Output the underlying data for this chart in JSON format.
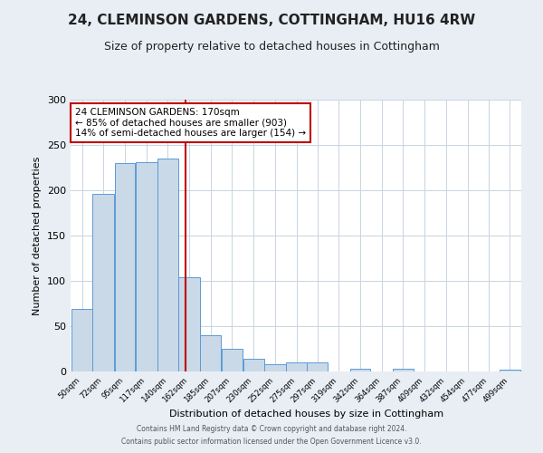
{
  "title": "24, CLEMINSON GARDENS, COTTINGHAM, HU16 4RW",
  "subtitle": "Size of property relative to detached houses in Cottingham",
  "xlabel": "Distribution of detached houses by size in Cottingham",
  "ylabel": "Number of detached properties",
  "bin_labels": [
    "50sqm",
    "72sqm",
    "95sqm",
    "117sqm",
    "140sqm",
    "162sqm",
    "185sqm",
    "207sqm",
    "230sqm",
    "252sqm",
    "275sqm",
    "297sqm",
    "319sqm",
    "342sqm",
    "364sqm",
    "387sqm",
    "409sqm",
    "432sqm",
    "454sqm",
    "477sqm",
    "499sqm"
  ],
  "bar_values": [
    69,
    196,
    230,
    231,
    235,
    104,
    40,
    25,
    14,
    8,
    10,
    10,
    0,
    3,
    0,
    3,
    0,
    0,
    0,
    0,
    2
  ],
  "bar_color": "#c9d9e8",
  "bar_edge_color": "#5b9bd5",
  "vline_x": 170,
  "vline_color": "#c00000",
  "annotation_title": "24 CLEMINSON GARDENS: 170sqm",
  "annotation_line1": "← 85% of detached houses are smaller (903)",
  "annotation_line2": "14% of semi-detached houses are larger (154) →",
  "annotation_box_color": "#c00000",
  "ylim": [
    0,
    300
  ],
  "yticks": [
    0,
    50,
    100,
    150,
    200,
    250,
    300
  ],
  "footnote1": "Contains HM Land Registry data © Crown copyright and database right 2024.",
  "footnote2": "Contains public sector information licensed under the Open Government Licence v3.0.",
  "bg_color": "#e8eef4",
  "plot_bg_color": "#ffffff",
  "title_fontsize": 11,
  "subtitle_fontsize": 9
}
